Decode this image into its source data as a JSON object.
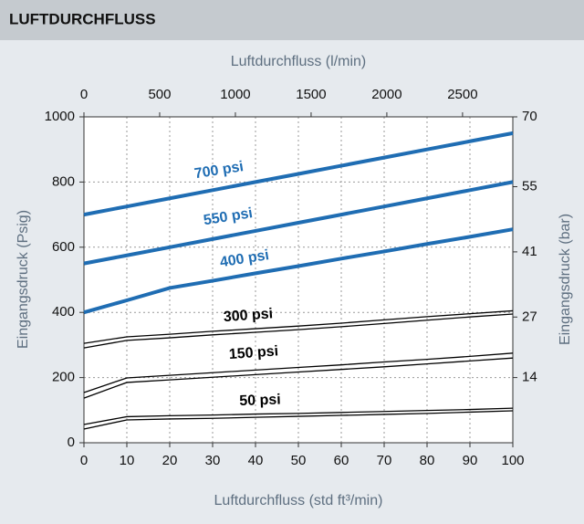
{
  "chart_data": {
    "type": "line",
    "title": "LUFTDURCHFLUSS",
    "x_label": "Luftdurchfluss (std ft³/min)",
    "x2_label": "Luftdurchfluss (l/min)",
    "y_label": "Eingangsdruck  (Psig)",
    "y2_label": "Eingangsdruck  (bar)",
    "x": [
      0,
      10,
      20,
      30,
      40,
      50,
      60,
      70,
      80,
      90,
      100
    ],
    "xlim": [
      0,
      100
    ],
    "xticks": [
      0,
      10,
      20,
      30,
      40,
      50,
      60,
      70,
      80,
      90,
      100
    ],
    "x2lim": [
      0,
      2832
    ],
    "x2ticks": [
      0,
      500,
      1000,
      1500,
      2000,
      2500
    ],
    "ylim": [
      0,
      1000
    ],
    "yticks": [
      0,
      200,
      400,
      600,
      800,
      1000
    ],
    "y2lim": [
      0,
      70
    ],
    "y2ticks": [
      14,
      27,
      41,
      55,
      70
    ],
    "grid": true,
    "series": [
      {
        "name": "700 psi",
        "color": "#1f6db3",
        "values": [
          700,
          725,
          750,
          775,
          800,
          825,
          850,
          875,
          900,
          925,
          950
        ]
      },
      {
        "name": "550 psi",
        "color": "#1f6db3",
        "values": [
          550,
          575,
          600,
          625,
          650,
          675,
          700,
          725,
          750,
          775,
          800
        ]
      },
      {
        "name": "400 psi",
        "color": "#1f6db3",
        "values": [
          400,
          437,
          475,
          497,
          520,
          542,
          565,
          587,
          610,
          632,
          655
        ]
      },
      {
        "name": "300 psi",
        "color": "#000000",
        "values": [
          305,
          325,
          333,
          342,
          350,
          358,
          367,
          377,
          387,
          396,
          405
        ],
        "low": [
          291,
          314,
          322,
          331,
          339,
          347,
          356,
          366,
          376,
          386,
          395
        ]
      },
      {
        "name": "150 psi",
        "color": "#000000",
        "values": [
          154,
          199,
          207,
          215,
          223,
          231,
          239,
          248,
          256,
          265,
          275
        ],
        "low": [
          137,
          185,
          193,
          201,
          209,
          217,
          225,
          233,
          242,
          251,
          260
        ]
      },
      {
        "name": "50 psi",
        "color": "#000000",
        "values": [
          56,
          80,
          83,
          85,
          88,
          90,
          93,
          96,
          99,
          102,
          106
        ],
        "low": [
          42,
          70,
          73,
          75,
          78,
          81,
          84,
          87,
          90,
          94,
          98
        ]
      }
    ]
  }
}
